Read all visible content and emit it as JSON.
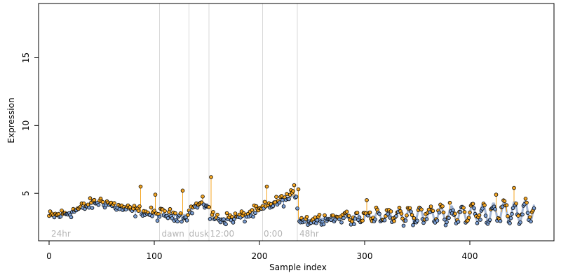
{
  "chart_data": {
    "type": "scatter",
    "title": "",
    "xlabel": "Sample index",
    "ylabel": "Expression",
    "xlim": [
      -10,
      480
    ],
    "ylim": [
      1.5,
      19
    ],
    "x_ticks": [
      0,
      100,
      200,
      300,
      400
    ],
    "x_tick_labels": [
      "0",
      "100",
      "200",
      "300",
      "400"
    ],
    "y_ticks": [
      5,
      10,
      15
    ],
    "y_tick_labels": [
      "5",
      "10",
      "15"
    ],
    "n_samples": 462,
    "region_boundaries": [
      105,
      133,
      152,
      203,
      236
    ],
    "region_labels": [
      {
        "text": "24hr",
        "x": 2
      },
      {
        "text": "dawn",
        "x": 107
      },
      {
        "text": "dusk",
        "x": 133
      },
      {
        "text": "12:00",
        "x": 153
      },
      {
        "text": "0:00",
        "x": 204
      },
      {
        "text": "48hr",
        "x": 238
      }
    ],
    "colors": {
      "fitted_line": "#a6b8d6",
      "above_fit": "#f5a623",
      "below_fit": "#7b9fd4",
      "point_edge": "#000000",
      "region_line": "#d9d9d9",
      "region_label": "#b4b4b4"
    },
    "fitted_anchor_points": [
      [
        0,
        3.3
      ],
      [
        10,
        3.4
      ],
      [
        20,
        3.6
      ],
      [
        30,
        3.9
      ],
      [
        40,
        4.2
      ],
      [
        48,
        4.4
      ],
      [
        55,
        4.3
      ],
      [
        65,
        4.0
      ],
      [
        75,
        3.8
      ],
      [
        90,
        3.6
      ],
      [
        104,
        3.4
      ],
      [
        106,
        3.5
      ],
      [
        115,
        3.4
      ],
      [
        125,
        3.4
      ],
      [
        132,
        3.4
      ],
      [
        134,
        3.7
      ],
      [
        138,
        4.0
      ],
      [
        145,
        4.2
      ],
      [
        151,
        4.2
      ],
      [
        153,
        3.3
      ],
      [
        165,
        3.1
      ],
      [
        175,
        3.2
      ],
      [
        185,
        3.3
      ],
      [
        195,
        3.6
      ],
      [
        202,
        3.8
      ],
      [
        204,
        3.9
      ],
      [
        215,
        4.3
      ],
      [
        225,
        4.6
      ],
      [
        235,
        4.9
      ],
      [
        237,
        3.1
      ],
      [
        250,
        3.0
      ],
      [
        265,
        3.2
      ],
      [
        280,
        3.2
      ]
    ],
    "oscillation": {
      "start": 280,
      "end": 462,
      "period": 10,
      "base": 3.2,
      "amplitude_start": 0.3,
      "amplitude_end": 0.8,
      "drift": 0.5
    },
    "spikes": [
      [
        87,
        5.5
      ],
      [
        101,
        4.9
      ],
      [
        127,
        5.2
      ],
      [
        154,
        6.2
      ],
      [
        207,
        5.5
      ],
      [
        233,
        5.6
      ],
      [
        237,
        5.3
      ],
      [
        302,
        4.5
      ],
      [
        425,
        4.9
      ],
      [
        442,
        5.4
      ]
    ]
  }
}
